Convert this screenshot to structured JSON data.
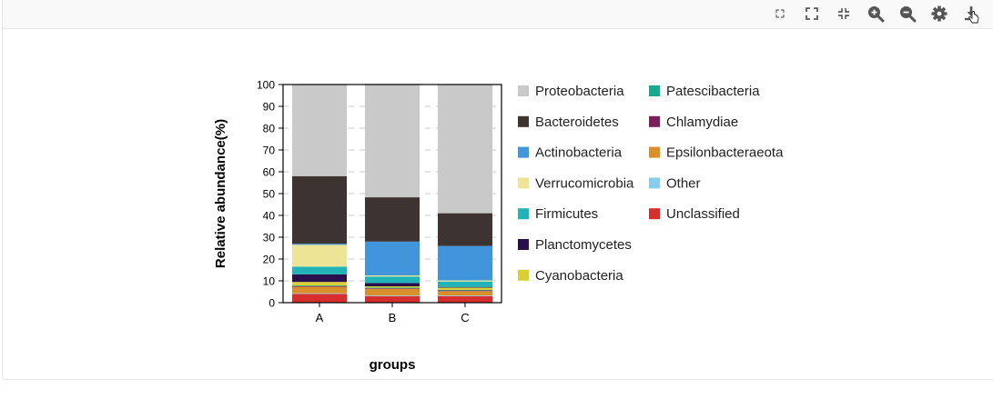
{
  "toolbar": {
    "buttons": [
      {
        "name": "expand-small-icon"
      },
      {
        "name": "fullscreen-icon"
      },
      {
        "name": "exit-fullscreen-icon"
      },
      {
        "name": "zoom-in-icon"
      },
      {
        "name": "zoom-out-icon"
      },
      {
        "name": "settings-icon"
      },
      {
        "name": "download-icon"
      }
    ]
  },
  "chart_data": {
    "type": "bar",
    "stacked": true,
    "title": "",
    "xlabel": "groups",
    "ylabel": "Relative abundance(%)",
    "ylim": [
      0,
      100
    ],
    "yticks": [
      0,
      10,
      20,
      30,
      40,
      50,
      60,
      70,
      80,
      90,
      100
    ],
    "grid": true,
    "legend_position": "right",
    "categories": [
      "A",
      "B",
      "C"
    ],
    "series": [
      {
        "name": "Unclassified",
        "color": "#d62d2d",
        "values": [
          4,
          3,
          3
        ]
      },
      {
        "name": "Other",
        "color": "#87cdf0",
        "values": [
          0.3,
          0.3,
          0.3
        ]
      },
      {
        "name": "Epsilonbacteraeota",
        "color": "#d9902a",
        "values": [
          3,
          3,
          2
        ]
      },
      {
        "name": "Chlamydiae",
        "color": "#7b1f5a",
        "values": [
          0.3,
          0.3,
          0.3
        ]
      },
      {
        "name": "Patescibacteria",
        "color": "#1aa88e",
        "values": [
          0.3,
          0.3,
          0.3
        ]
      },
      {
        "name": "Cyanobacteria",
        "color": "#d9cf33",
        "values": [
          1.6,
          0.6,
          1
        ]
      },
      {
        "name": "Planctomycetes",
        "color": "#2a0f4f",
        "values": [
          3.5,
          1.5,
          0.3
        ]
      },
      {
        "name": "Firmicutes",
        "color": "#20b3b8",
        "values": [
          3.5,
          3,
          2.5
        ]
      },
      {
        "name": "Verrucomicrobia",
        "color": "#ede595",
        "values": [
          10,
          0.5,
          0.5
        ]
      },
      {
        "name": "Actinobacteria",
        "color": "#4196db",
        "values": [
          0.5,
          15.5,
          15.8
        ]
      },
      {
        "name": "Bacteroidetes",
        "color": "#3d3331",
        "values": [
          31,
          20.3,
          15
        ]
      },
      {
        "name": "Proteobacteria",
        "color": "#c8c9c8",
        "values": [
          42,
          52,
          59
        ]
      }
    ],
    "legend_order": [
      "Proteobacteria",
      "Bacteroidetes",
      "Actinobacteria",
      "Verrucomicrobia",
      "Firmicutes",
      "Planctomycetes",
      "Cyanobacteria",
      "Patescibacteria",
      "Chlamydiae",
      "Epsilonbacteraeota",
      "Other",
      "Unclassified"
    ]
  }
}
